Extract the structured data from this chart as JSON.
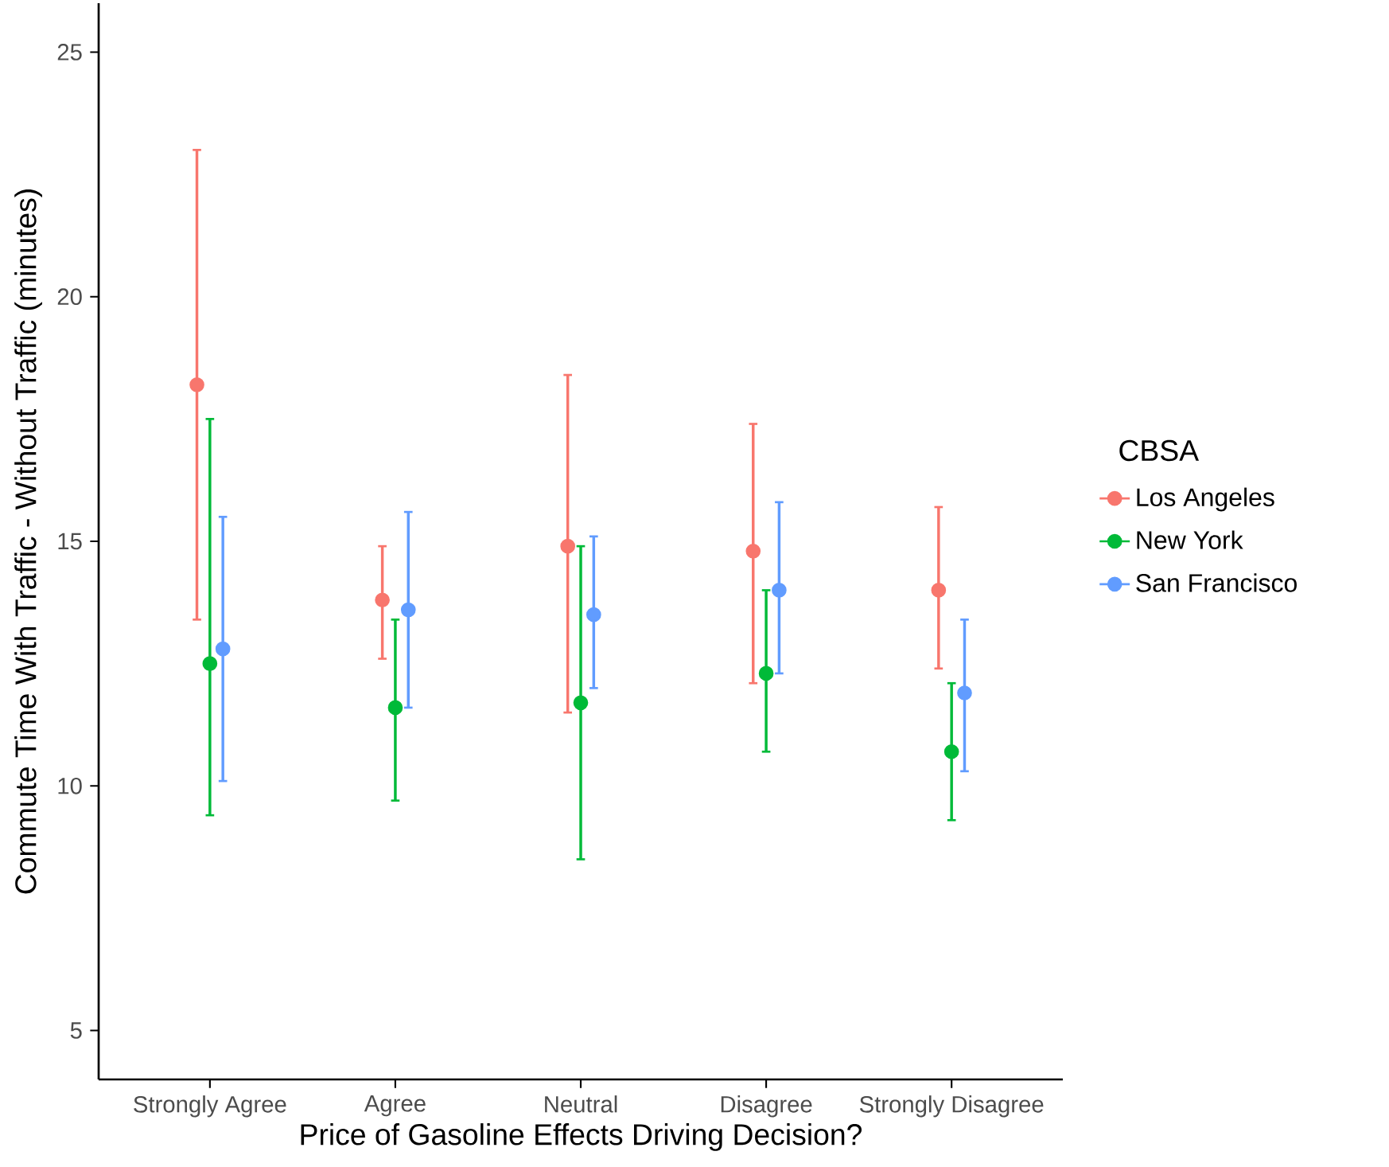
{
  "chart_data": {
    "type": "scatter",
    "xlabel": "Price of Gasoline Effects Driving Decision?",
    "ylabel": "Commute Time With Traffic - Without Traffic (minutes)",
    "legend_title": "CBSA",
    "categories": [
      "Strongly Agree",
      "Agree",
      "Neutral",
      "Disagree",
      "Strongly Disagree"
    ],
    "series": [
      {
        "name": "Los Angeles",
        "color": "#f8766d",
        "values": [
          18.2,
          13.8,
          14.9,
          14.8,
          14.0
        ],
        "errors": [
          [
            13.4,
            23.0
          ],
          [
            12.6,
            14.9
          ],
          [
            11.5,
            18.4
          ],
          [
            12.1,
            17.4
          ],
          [
            12.4,
            15.7
          ]
        ]
      },
      {
        "name": "New York",
        "color": "#00ba38",
        "values": [
          12.5,
          11.6,
          11.7,
          12.3,
          10.7
        ],
        "errors": [
          [
            9.4,
            17.5
          ],
          [
            9.7,
            13.4
          ],
          [
            8.5,
            14.9
          ],
          [
            10.7,
            14.0
          ],
          [
            9.3,
            12.1
          ]
        ]
      },
      {
        "name": "San Francisco",
        "color": "#619cff",
        "values": [
          12.8,
          13.6,
          13.5,
          14.0,
          11.9
        ],
        "errors": [
          [
            10.1,
            15.5
          ],
          [
            11.6,
            15.6
          ],
          [
            12.0,
            15.1
          ],
          [
            12.3,
            15.8
          ],
          [
            10.3,
            13.4
          ]
        ]
      }
    ],
    "ylim": [
      4,
      26
    ],
    "yticks": [
      5,
      10,
      15,
      20,
      25
    ],
    "grid": false,
    "legend": "right",
    "marker": "circle"
  }
}
